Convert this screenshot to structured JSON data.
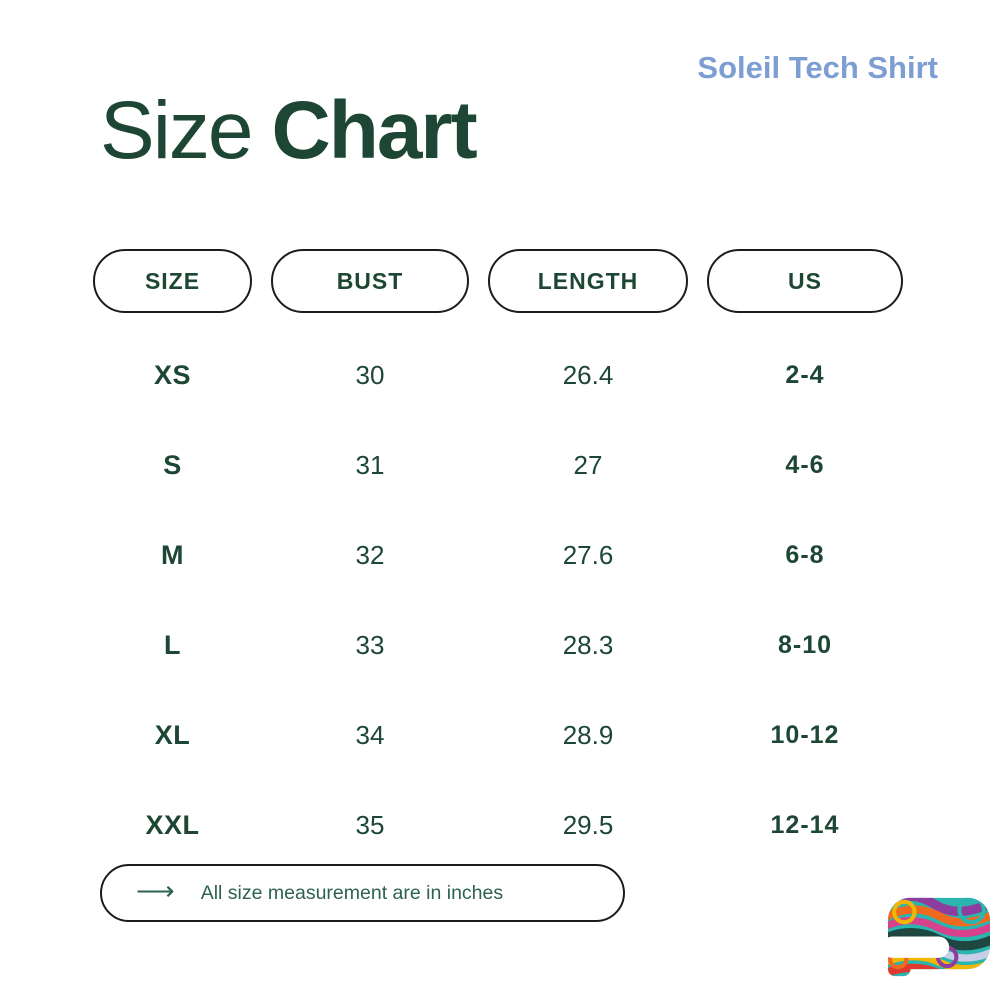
{
  "header": {
    "product_name": "Soleil Tech Shirt",
    "title_light": "Size",
    "title_bold": "Chart"
  },
  "table": {
    "columns": [
      "SIZE",
      "BUST",
      "LENGTH",
      "US"
    ],
    "rows": [
      [
        "XS",
        "30",
        "26.4",
        "2-4"
      ],
      [
        "S",
        "31",
        "27",
        "4-6"
      ],
      [
        "M",
        "32",
        "27.6",
        "6-8"
      ],
      [
        "L",
        "33",
        "28.3",
        "8-10"
      ],
      [
        "XL",
        "34",
        "28.9",
        "10-12"
      ],
      [
        "XXL",
        "35",
        "29.5",
        "12-14"
      ]
    ]
  },
  "footer": {
    "arrow_icon": "⟶",
    "note": "All size measurement are in inches"
  },
  "colors": {
    "text_green_dark": "#1d4734",
    "title_green": "#1e4634",
    "accent_blue": "#7d9ed3",
    "pill_border": "#1c1c1c",
    "note_green": "#2c624e",
    "logo_palette": [
      "#2ab5ae",
      "#8e3d9e",
      "#ef6a1f",
      "#d8418c",
      "#1d4740",
      "#c8cde8",
      "#f2b705",
      "#e03a2f"
    ]
  },
  "chart_data": {
    "type": "table",
    "title": "Size Chart",
    "subtitle": "Soleil Tech Shirt",
    "columns": [
      "SIZE",
      "BUST",
      "LENGTH",
      "US"
    ],
    "rows": [
      [
        "XS",
        "30",
        "26.4",
        "2-4"
      ],
      [
        "S",
        "31",
        "27",
        "4-6"
      ],
      [
        "M",
        "32",
        "27.6",
        "6-8"
      ],
      [
        "L",
        "33",
        "28.3",
        "8-10"
      ],
      [
        "XL",
        "34",
        "28.9",
        "10-12"
      ],
      [
        "XXL",
        "35",
        "29.5",
        "12-14"
      ]
    ],
    "note": "All size measurement are in inches",
    "units": "inches"
  }
}
